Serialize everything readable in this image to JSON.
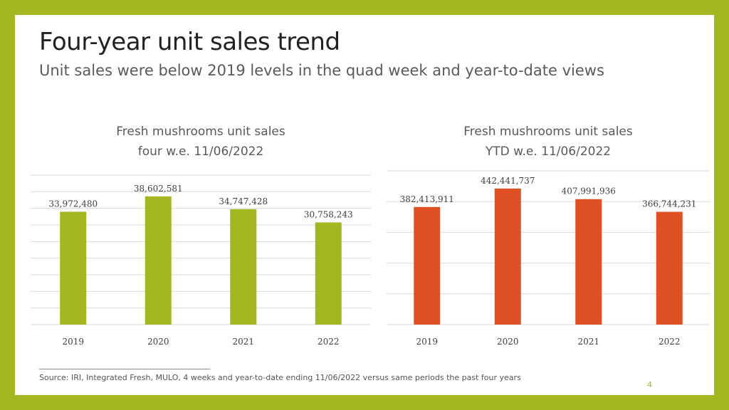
{
  "slide": {
    "title": "Four-year unit sales trend",
    "subtitle": "Unit sales were below 2019 levels in the quad week and year-to-date views",
    "source": "Source: IRI, Integrated Fresh, MULO, 4 weeks and year-to-date ending 11/06/2022 versus same periods the past four years",
    "page_number": "4"
  },
  "colors": {
    "frame": "#a4b722",
    "series_quad": "#a4b722",
    "series_ytd": "#e05025",
    "grid": "#d9d9d9"
  },
  "chart_data": [
    {
      "type": "bar",
      "title_line1": "Fresh mushrooms unit sales",
      "title_line2": "four w.e. 11/06/2022",
      "categories": [
        "2019",
        "2020",
        "2021",
        "2022"
      ],
      "values": [
        33972480,
        38602581,
        34747428,
        30758243
      ],
      "data_labels": [
        "33,972,480",
        "38,602,581",
        "34,747,428",
        "30,758,243"
      ],
      "color": "#a4b722",
      "ylim": [
        0,
        45000000
      ],
      "gridlines": 9,
      "grid": true,
      "legend": false
    },
    {
      "type": "bar",
      "title_line1": "Fresh mushrooms unit sales",
      "title_line2": "YTD w.e. 11/06/2022",
      "categories": [
        "2019",
        "2020",
        "2021",
        "2022"
      ],
      "values": [
        382413911,
        442441737,
        407991936,
        366744231
      ],
      "data_labels": [
        "382,413,911",
        "442,441,737",
        "407,991,936",
        "366,744,231"
      ],
      "color": "#e05025",
      "ylim": [
        0,
        500000000
      ],
      "gridlines": 5,
      "grid": true,
      "legend": false
    }
  ]
}
